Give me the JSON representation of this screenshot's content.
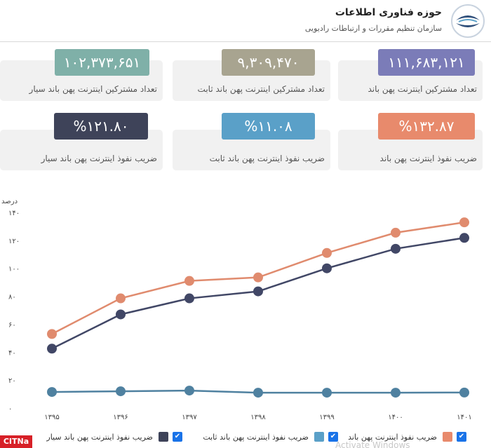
{
  "colors": {
    "total": "#7b7cb8",
    "fixed": "#a8a490",
    "mobile": "#7fb0a8",
    "pen_total": "#e88a6c",
    "pen_fixed": "#5aa0c8",
    "pen_mobile": "#3e4359",
    "line_total": "#e08b6e",
    "line_mobile": "#414766",
    "line_fixed": "#4f81a0"
  },
  "header": {
    "title": "حوزه فناوری اطلاعات",
    "subtitle": "سازمان تنظیم مقررات و ارتباطات رادیویی",
    "logo_icon": "cra-wave-logo-icon"
  },
  "cards": {
    "total": {
      "value": "۱۱۱,۶۸۳,۱۲۱",
      "label": "تعداد مشترکین اینترنت پهن باند"
    },
    "fixed": {
      "value": "۹,۳۰۹,۴۷۰",
      "label": "تعداد مشترکین اینترنت پهن باند ثابت"
    },
    "mobile": {
      "value": "۱۰۲,۳۷۳,۶۵۱",
      "label": "تعداد مشترکین اینترنت پهن باند سیار"
    },
    "pen_total": {
      "value": "%۱۳۲.۸۷",
      "label": "ضریب نفوذ اینترنت پهن باند"
    },
    "pen_fixed": {
      "value": "%۱۱.۰۸",
      "label": "ضریب نفوذ اینترنت پهن باند ثابت"
    },
    "pen_mobile": {
      "value": "%۱۲۱.۸۰",
      "label": "ضریب نفوذ اینترنت پهن باند سیار"
    }
  },
  "chart_data": {
    "type": "line",
    "ylabel": "درصد",
    "ylim": [
      0,
      140
    ],
    "y_ticks": [
      0,
      20,
      40,
      60,
      80,
      100,
      120,
      140
    ],
    "y_tick_labels": [
      "۰",
      "۲۰",
      "۴۰",
      "۶۰",
      "۸۰",
      "۱۰۰",
      "۱۲۰",
      "۱۴۰"
    ],
    "x_labels": [
      "۱۳۹۵",
      "۱۳۹۶",
      "۱۳۹۷",
      "۱۳۹۸",
      "۱۳۹۹",
      "۱۴۰۰",
      "۱۴۰۱"
    ],
    "grid": false,
    "legend_position": "bottom",
    "series": [
      {
        "key": "total",
        "name": "ضریب نفوذ اینترنت پهن باند",
        "color": "#e08b6e",
        "values": [
          53,
          78.5,
          91,
          93.5,
          111,
          125.5,
          132.9
        ]
      },
      {
        "key": "mobile",
        "name": "ضریب نفوذ اینترنت پهن باند سیار",
        "color": "#414766",
        "values": [
          42.5,
          67,
          78.5,
          83.5,
          100,
          114,
          121.8
        ]
      },
      {
        "key": "fixed",
        "name": "ضریب نفوذ اینترنت پهن باند ثابت",
        "color": "#4f81a0",
        "values": [
          11.5,
          12,
          12.5,
          11,
          11,
          11,
          11.1
        ]
      }
    ]
  },
  "legend": {
    "total": "ضریب نفوذ اینترنت پهن باند",
    "fixed": "ضریب نفوذ اینترنت پهن باند ثابت",
    "mobile": "ضریب نفوذ اینترنت پهن باند سیار"
  },
  "brand": {
    "label": "CITNa"
  },
  "watermark": {
    "text": "Activate Windows"
  }
}
